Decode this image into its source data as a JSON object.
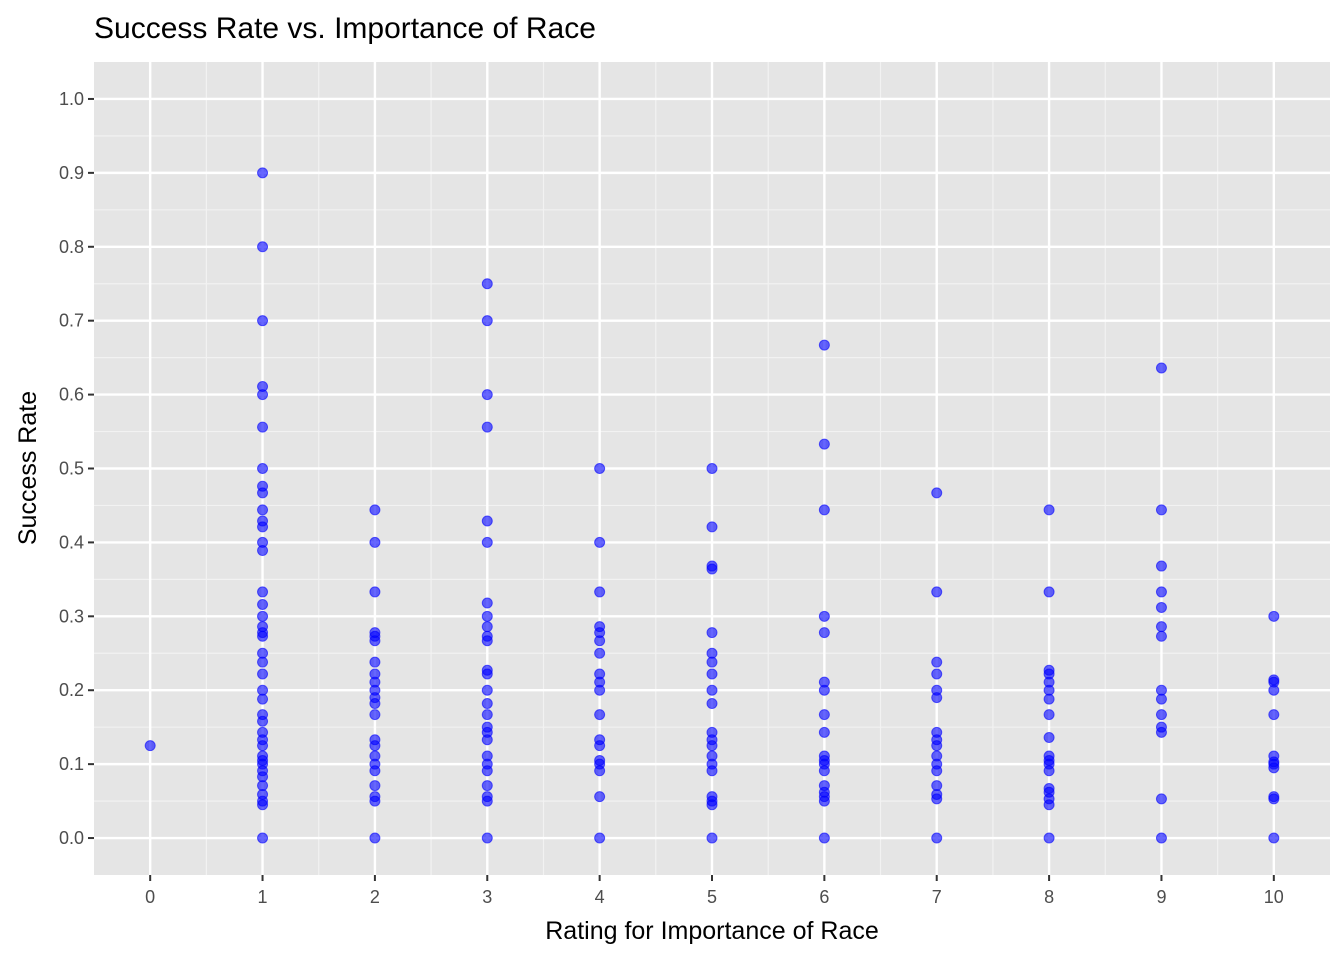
{
  "chart_data": {
    "type": "scatter",
    "title": "Success Rate vs. Importance of Race",
    "xlabel": "Rating for Importance of Race",
    "ylabel": "Success Rate",
    "xlim": [
      -0.5,
      10.5
    ],
    "ylim": [
      -0.05,
      1.05
    ],
    "x_ticks": [
      0,
      1,
      2,
      3,
      4,
      5,
      6,
      7,
      8,
      9,
      10
    ],
    "x_tick_labels": [
      "0",
      "1",
      "2",
      "3",
      "4",
      "5",
      "6",
      "7",
      "8",
      "9",
      "10"
    ],
    "y_ticks": [
      0.0,
      0.1,
      0.2,
      0.3,
      0.4,
      0.5,
      0.6,
      0.7,
      0.8,
      0.9,
      1.0
    ],
    "y_tick_labels": [
      "0.0",
      "0.1",
      "0.2",
      "0.3",
      "0.4",
      "0.5",
      "0.6",
      "0.7",
      "0.8",
      "0.9",
      "1.0"
    ],
    "grid": true,
    "legend": "none",
    "colors": {
      "panel": "#e5e5e5",
      "grid_major": "#ffffff",
      "grid_minor": "#f2f2f2",
      "point": "#0000ff",
      "point_opacity": 0.6
    },
    "series": [
      {
        "points": [
          {
            "x": 0,
            "y": [
              0.125
            ]
          },
          {
            "x": 1,
            "y": [
              0.9,
              0.8,
              0.7,
              0.611,
              0.6,
              0.556,
              0.5,
              0.476,
              0.467,
              0.444,
              0.429,
              0.421,
              0.4,
              0.389,
              0.333,
              0.316,
              0.3,
              0.286,
              0.278,
              0.273,
              0.25,
              0.238,
              0.222,
              0.2,
              0.188,
              0.167,
              0.158,
              0.143,
              0.133,
              0.125,
              0.111,
              0.105,
              0.1,
              0.091,
              0.083,
              0.071,
              0.059,
              0.05,
              0.045,
              0.0
            ]
          },
          {
            "x": 2,
            "y": [
              0.444,
              0.4,
              0.333,
              0.278,
              0.273,
              0.267,
              0.238,
              0.222,
              0.211,
              0.2,
              0.19,
              0.182,
              0.167,
              0.133,
              0.125,
              0.111,
              0.1,
              0.091,
              0.071,
              0.056,
              0.05,
              0.0
            ]
          },
          {
            "x": 3,
            "y": [
              0.75,
              0.7,
              0.6,
              0.556,
              0.429,
              0.4,
              0.318,
              0.3,
              0.286,
              0.273,
              0.267,
              0.227,
              0.222,
              0.2,
              0.182,
              0.167,
              0.15,
              0.143,
              0.133,
              0.111,
              0.1,
              0.091,
              0.071,
              0.056,
              0.05,
              0.0
            ]
          },
          {
            "x": 4,
            "y": [
              0.5,
              0.4,
              0.333,
              0.286,
              0.278,
              0.267,
              0.25,
              0.222,
              0.211,
              0.2,
              0.167,
              0.133,
              0.125,
              0.105,
              0.1,
              0.091,
              0.056,
              0.0
            ]
          },
          {
            "x": 5,
            "y": [
              0.5,
              0.421,
              0.368,
              0.364,
              0.278,
              0.25,
              0.238,
              0.222,
              0.2,
              0.182,
              0.143,
              0.133,
              0.125,
              0.111,
              0.1,
              0.091,
              0.056,
              0.05,
              0.045,
              0.0
            ]
          },
          {
            "x": 6,
            "y": [
              0.667,
              0.533,
              0.444,
              0.3,
              0.278,
              0.211,
              0.2,
              0.167,
              0.143,
              0.111,
              0.105,
              0.1,
              0.091,
              0.071,
              0.062,
              0.056,
              0.05,
              0.0
            ]
          },
          {
            "x": 7,
            "y": [
              0.467,
              0.333,
              0.238,
              0.222,
              0.2,
              0.19,
              0.143,
              0.133,
              0.125,
              0.111,
              0.1,
              0.091,
              0.071,
              0.059,
              0.053,
              0.0
            ]
          },
          {
            "x": 8,
            "y": [
              0.444,
              0.333,
              0.227,
              0.222,
              0.211,
              0.2,
              0.188,
              0.167,
              0.136,
              0.111,
              0.105,
              0.1,
              0.091,
              0.067,
              0.062,
              0.053,
              0.045,
              0.0
            ]
          },
          {
            "x": 9,
            "y": [
              0.636,
              0.444,
              0.368,
              0.333,
              0.312,
              0.286,
              0.273,
              0.2,
              0.188,
              0.167,
              0.15,
              0.143,
              0.053,
              0.0
            ]
          },
          {
            "x": 10,
            "y": [
              0.3,
              0.214,
              0.211,
              0.2,
              0.167,
              0.111,
              0.103,
              0.1,
              0.095,
              0.056,
              0.053,
              0.0
            ]
          }
        ]
      }
    ]
  }
}
